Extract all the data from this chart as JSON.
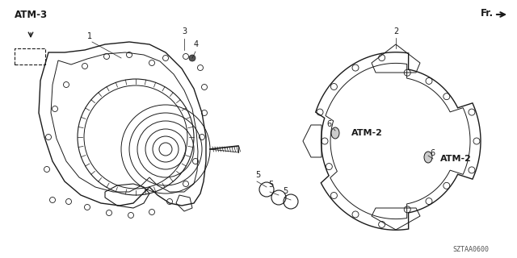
{
  "title": "",
  "background_color": "#ffffff",
  "part_number": "SZTAA0600",
  "labels": {
    "atm3": "ATM-3",
    "atm2_left": "ATM-2",
    "atm2_right": "ATM-2",
    "fr": "Fr.",
    "num1": "1",
    "num2": "2",
    "num3": "3",
    "num4": "4",
    "num5a": "5",
    "num5b": "5",
    "num5c": "5",
    "num6a": "6",
    "num6b": "6"
  },
  "line_color": "#1a1a1a",
  "text_color": "#1a1a1a",
  "arrow_color": "#1a1a1a"
}
